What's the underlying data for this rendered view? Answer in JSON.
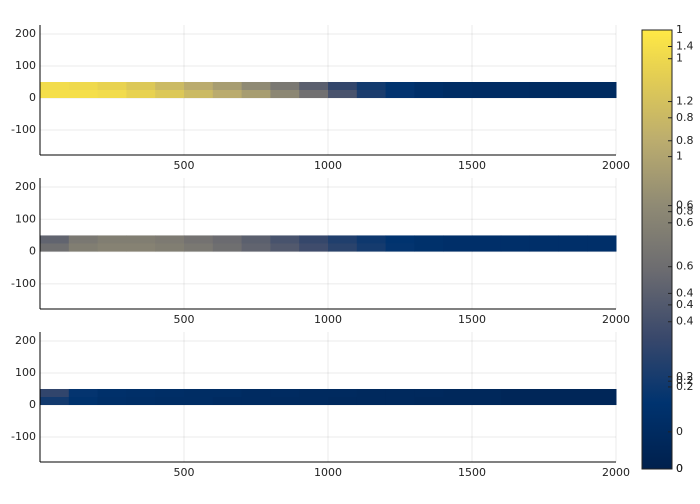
{
  "chart_data": [
    {
      "type": "heatmap",
      "x_edges": [
        0,
        100,
        200,
        300,
        400,
        500,
        600,
        700,
        800,
        900,
        1000,
        1100,
        1200,
        1300,
        1400,
        1500,
        1600,
        1700,
        1800,
        1900,
        2000
      ],
      "y_edges": [
        0,
        25,
        50
      ],
      "z": [
        [
          1.4,
          1.4,
          1.38,
          1.32,
          1.25,
          1.15,
          1.05,
          0.95,
          0.8,
          0.62,
          0.42,
          0.22,
          0.12,
          0.06,
          0.03,
          0.02,
          0.01,
          0,
          0,
          0
        ],
        [
          1.38,
          1.36,
          1.32,
          1.25,
          1.15,
          1.05,
          0.95,
          0.82,
          0.68,
          0.5,
          0.32,
          0.18,
          0.1,
          0.05,
          0.03,
          0.02,
          0.01,
          0,
          0,
          0
        ]
      ],
      "xlim": [
        0,
        2000
      ],
      "ylim": [
        -178,
        228
      ],
      "xticks": [
        500,
        1000,
        1500,
        2000
      ],
      "yticks": [
        -100,
        0,
        100,
        200
      ],
      "clim": [
        -0.135,
        1.46
      ],
      "cticks": [
        0,
        0.2,
        0.4,
        0.6,
        0.8,
        1,
        1.2,
        1.4
      ],
      "grid": true
    },
    {
      "type": "heatmap",
      "x_edges": [
        0,
        100,
        200,
        300,
        400,
        500,
        600,
        700,
        800,
        900,
        1000,
        1100,
        1200,
        1300,
        1400,
        1500,
        1600,
        1700,
        1800,
        1900,
        2000
      ],
      "y_edges": [
        0,
        25,
        50
      ],
      "z": [
        [
          0.5,
          0.58,
          0.6,
          0.6,
          0.58,
          0.55,
          0.5,
          0.45,
          0.4,
          0.34,
          0.28,
          0.22,
          0.17,
          0.14,
          0.13,
          0.13,
          0.13,
          0.13,
          0.13,
          0.13
        ],
        [
          0.45,
          0.55,
          0.58,
          0.58,
          0.56,
          0.52,
          0.48,
          0.43,
          0.37,
          0.31,
          0.25,
          0.2,
          0.16,
          0.14,
          0.13,
          0.13,
          0.13,
          0.13,
          0.13,
          0.13
        ]
      ],
      "xlim": [
        0,
        2000
      ],
      "ylim": [
        -178,
        228
      ],
      "xticks": [
        500,
        1000,
        1500,
        2000
      ],
      "yticks": [
        -100,
        0,
        100,
        200
      ],
      "clim": [
        0,
        1.07
      ],
      "cticks": [
        0,
        0.2,
        0.4,
        0.6,
        0.8,
        1
      ],
      "grid": true
    },
    {
      "type": "heatmap",
      "x_edges": [
        0,
        100,
        200,
        300,
        400,
        500,
        600,
        700,
        800,
        900,
        1000,
        1100,
        1200,
        1300,
        1400,
        1500,
        1600,
        1700,
        1800,
        1900,
        2000
      ],
      "y_edges": [
        0,
        25,
        50
      ],
      "z": [
        [
          0.2,
          0.14,
          0.12,
          0.11,
          0.1,
          0.1,
          0.09,
          0.09,
          0.08,
          0.08,
          0.07,
          0.07,
          0.07,
          0.06,
          0.06,
          0.06,
          0.05,
          0.05,
          0.05,
          0.05
        ],
        [
          0.28,
          0.16,
          0.13,
          0.12,
          0.11,
          0.1,
          0.1,
          0.09,
          0.09,
          0.08,
          0.08,
          0.07,
          0.07,
          0.07,
          0.06,
          0.06,
          0.05,
          0.05,
          0.05,
          0.05
        ]
      ],
      "xlim": [
        0,
        2000
      ],
      "ylim": [
        -178,
        228
      ],
      "xticks": [
        500,
        1000,
        1500,
        2000
      ],
      "yticks": [
        -100,
        0,
        100,
        200
      ],
      "clim": [
        0,
        1
      ],
      "cticks": [
        0,
        0.2,
        0.4,
        0.6,
        0.8,
        1
      ],
      "grid": true
    }
  ]
}
